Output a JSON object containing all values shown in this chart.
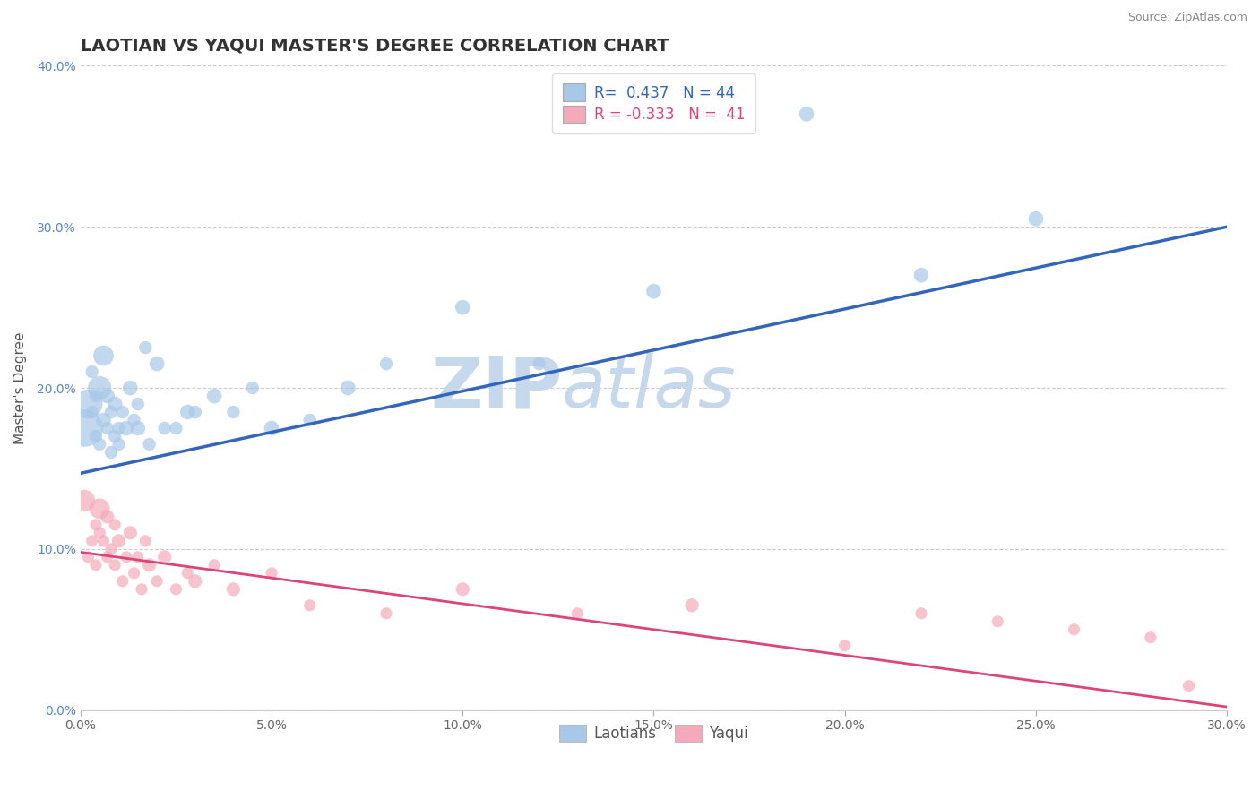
{
  "title": "LAOTIAN VS YAQUI MASTER'S DEGREE CORRELATION CHART",
  "source_text": "Source: ZipAtlas.com",
  "ylabel": "Master's Degree",
  "xlim": [
    0.0,
    0.3
  ],
  "ylim": [
    0.0,
    0.4
  ],
  "xticks": [
    0.0,
    0.05,
    0.1,
    0.15,
    0.2,
    0.25,
    0.3
  ],
  "yticks": [
    0.0,
    0.1,
    0.2,
    0.3,
    0.4
  ],
  "xtick_labels": [
    "0.0%",
    "5.0%",
    "10.0%",
    "15.0%",
    "20.0%",
    "25.0%",
    "30.0%"
  ],
  "ytick_labels": [
    "0.0%",
    "10.0%",
    "20.0%",
    "30.0%",
    "40.0%"
  ],
  "blue_color": "#A8C8E8",
  "pink_color": "#F4AABB",
  "blue_line_color": "#3366BB",
  "pink_line_color": "#DD4477",
  "background_color": "#FFFFFF",
  "grid_color": "#CCCCCC",
  "watermark_zip_color": "#C5D8EC",
  "watermark_atlas_color": "#C5D8EC",
  "R_blue": 0.437,
  "N_blue": 44,
  "R_pink": -0.333,
  "N_pink": 41,
  "legend_label_blue": "Laotians",
  "legend_label_pink": "Yaqui",
  "title_fontsize": 14,
  "axis_label_fontsize": 11,
  "tick_fontsize": 10,
  "blue_line_intercept": 0.147,
  "blue_line_slope": 0.51,
  "pink_line_intercept": 0.098,
  "pink_line_slope": -0.32,
  "blue_scatter_x": [
    0.001,
    0.002,
    0.003,
    0.003,
    0.004,
    0.004,
    0.005,
    0.005,
    0.006,
    0.006,
    0.007,
    0.007,
    0.008,
    0.008,
    0.009,
    0.009,
    0.01,
    0.01,
    0.011,
    0.012,
    0.013,
    0.014,
    0.015,
    0.015,
    0.017,
    0.018,
    0.02,
    0.022,
    0.025,
    0.028,
    0.03,
    0.035,
    0.04,
    0.045,
    0.05,
    0.06,
    0.07,
    0.08,
    0.1,
    0.12,
    0.15,
    0.19,
    0.22,
    0.25
  ],
  "blue_scatter_y": [
    0.175,
    0.19,
    0.185,
    0.21,
    0.17,
    0.195,
    0.165,
    0.2,
    0.18,
    0.22,
    0.175,
    0.195,
    0.16,
    0.185,
    0.17,
    0.19,
    0.175,
    0.165,
    0.185,
    0.175,
    0.2,
    0.18,
    0.175,
    0.19,
    0.225,
    0.165,
    0.215,
    0.175,
    0.175,
    0.185,
    0.185,
    0.195,
    0.185,
    0.2,
    0.175,
    0.18,
    0.2,
    0.215,
    0.25,
    0.215,
    0.26,
    0.37,
    0.27,
    0.305
  ],
  "blue_scatter_sizes": [
    60,
    60,
    60,
    60,
    60,
    60,
    60,
    60,
    80,
    60,
    60,
    80,
    60,
    60,
    60,
    80,
    60,
    60,
    60,
    80,
    80,
    60,
    80,
    60,
    60,
    60,
    80,
    60,
    60,
    80,
    60,
    80,
    60,
    60,
    80,
    60,
    80,
    60,
    80,
    60,
    80,
    80,
    80,
    80
  ],
  "pink_scatter_x": [
    0.001,
    0.002,
    0.003,
    0.004,
    0.004,
    0.005,
    0.005,
    0.006,
    0.007,
    0.007,
    0.008,
    0.009,
    0.009,
    0.01,
    0.011,
    0.012,
    0.013,
    0.014,
    0.015,
    0.016,
    0.017,
    0.018,
    0.02,
    0.022,
    0.025,
    0.028,
    0.03,
    0.035,
    0.04,
    0.05,
    0.06,
    0.08,
    0.1,
    0.13,
    0.16,
    0.2,
    0.22,
    0.24,
    0.26,
    0.28,
    0.29
  ],
  "pink_scatter_y": [
    0.13,
    0.095,
    0.105,
    0.115,
    0.09,
    0.125,
    0.11,
    0.105,
    0.095,
    0.12,
    0.1,
    0.115,
    0.09,
    0.105,
    0.08,
    0.095,
    0.11,
    0.085,
    0.095,
    0.075,
    0.105,
    0.09,
    0.08,
    0.095,
    0.075,
    0.085,
    0.08,
    0.09,
    0.075,
    0.085,
    0.065,
    0.06,
    0.075,
    0.06,
    0.065,
    0.04,
    0.06,
    0.055,
    0.05,
    0.045,
    0.015
  ],
  "pink_scatter_sizes": [
    80,
    60,
    60,
    60,
    60,
    80,
    60,
    60,
    60,
    80,
    60,
    60,
    60,
    80,
    60,
    60,
    80,
    60,
    60,
    60,
    60,
    80,
    60,
    80,
    60,
    60,
    80,
    60,
    80,
    60,
    60,
    60,
    80,
    60,
    80,
    60,
    60,
    60,
    60,
    60,
    60
  ]
}
